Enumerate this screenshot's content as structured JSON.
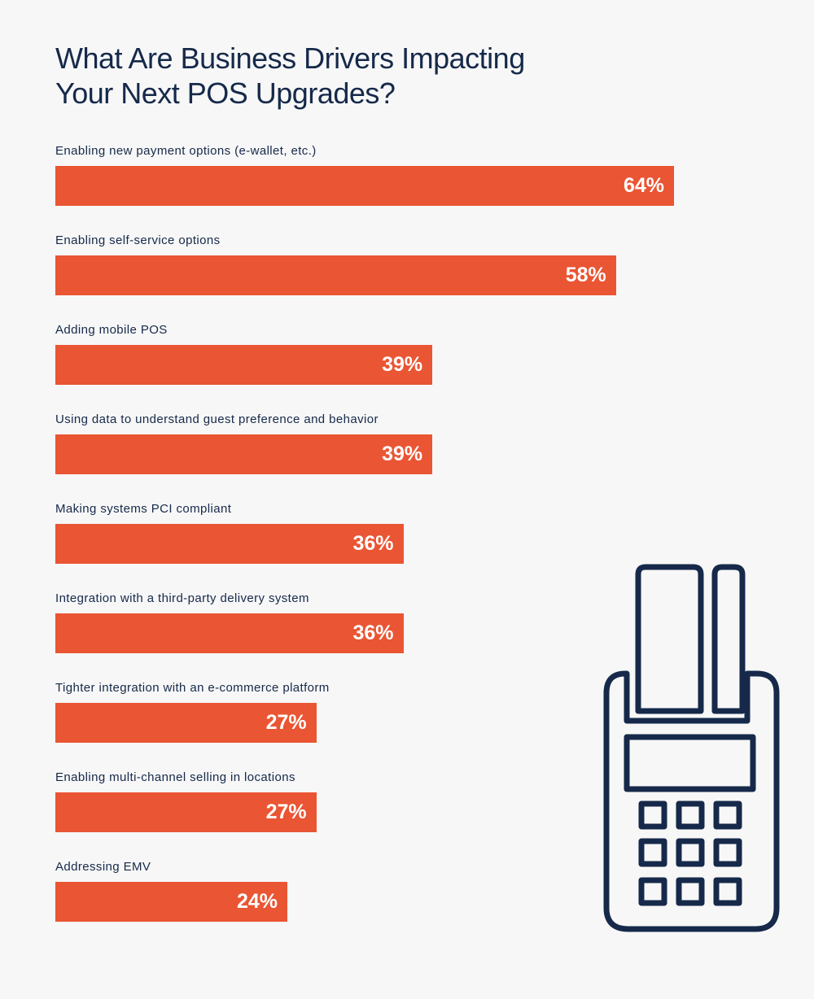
{
  "title_lines": [
    "What Are Business Drivers Impacting",
    "Your Next POS Upgrades?"
  ],
  "colors": {
    "bar": "#ea5533",
    "text": "#16294a",
    "icon": "#16294a",
    "background": "#f7f7f7"
  },
  "icon": "pos-terminal-icon",
  "chart_data": {
    "type": "bar",
    "orientation": "horizontal",
    "title": "What Are Business Drivers Impacting Your Next POS Upgrades?",
    "categories": [
      "Enabling new payment options (e-wallet, etc.)",
      "Enabling self-service options",
      "Adding mobile POS",
      "Using data to understand guest preference and behavior",
      "Making systems PCI compliant",
      "Integration with a third-party delivery system",
      "Tighter integration with an e-commerce platform",
      "Enabling multi-channel selling in locations",
      "Addressing EMV"
    ],
    "values": [
      64,
      58,
      39,
      39,
      36,
      36,
      27,
      27,
      24
    ],
    "value_labels": [
      "64%",
      "58%",
      "39%",
      "39%",
      "36%",
      "36%",
      "27%",
      "27%",
      "24%"
    ],
    "unit": "%",
    "xlim": [
      0,
      100
    ],
    "grid": false,
    "legend": "none"
  }
}
